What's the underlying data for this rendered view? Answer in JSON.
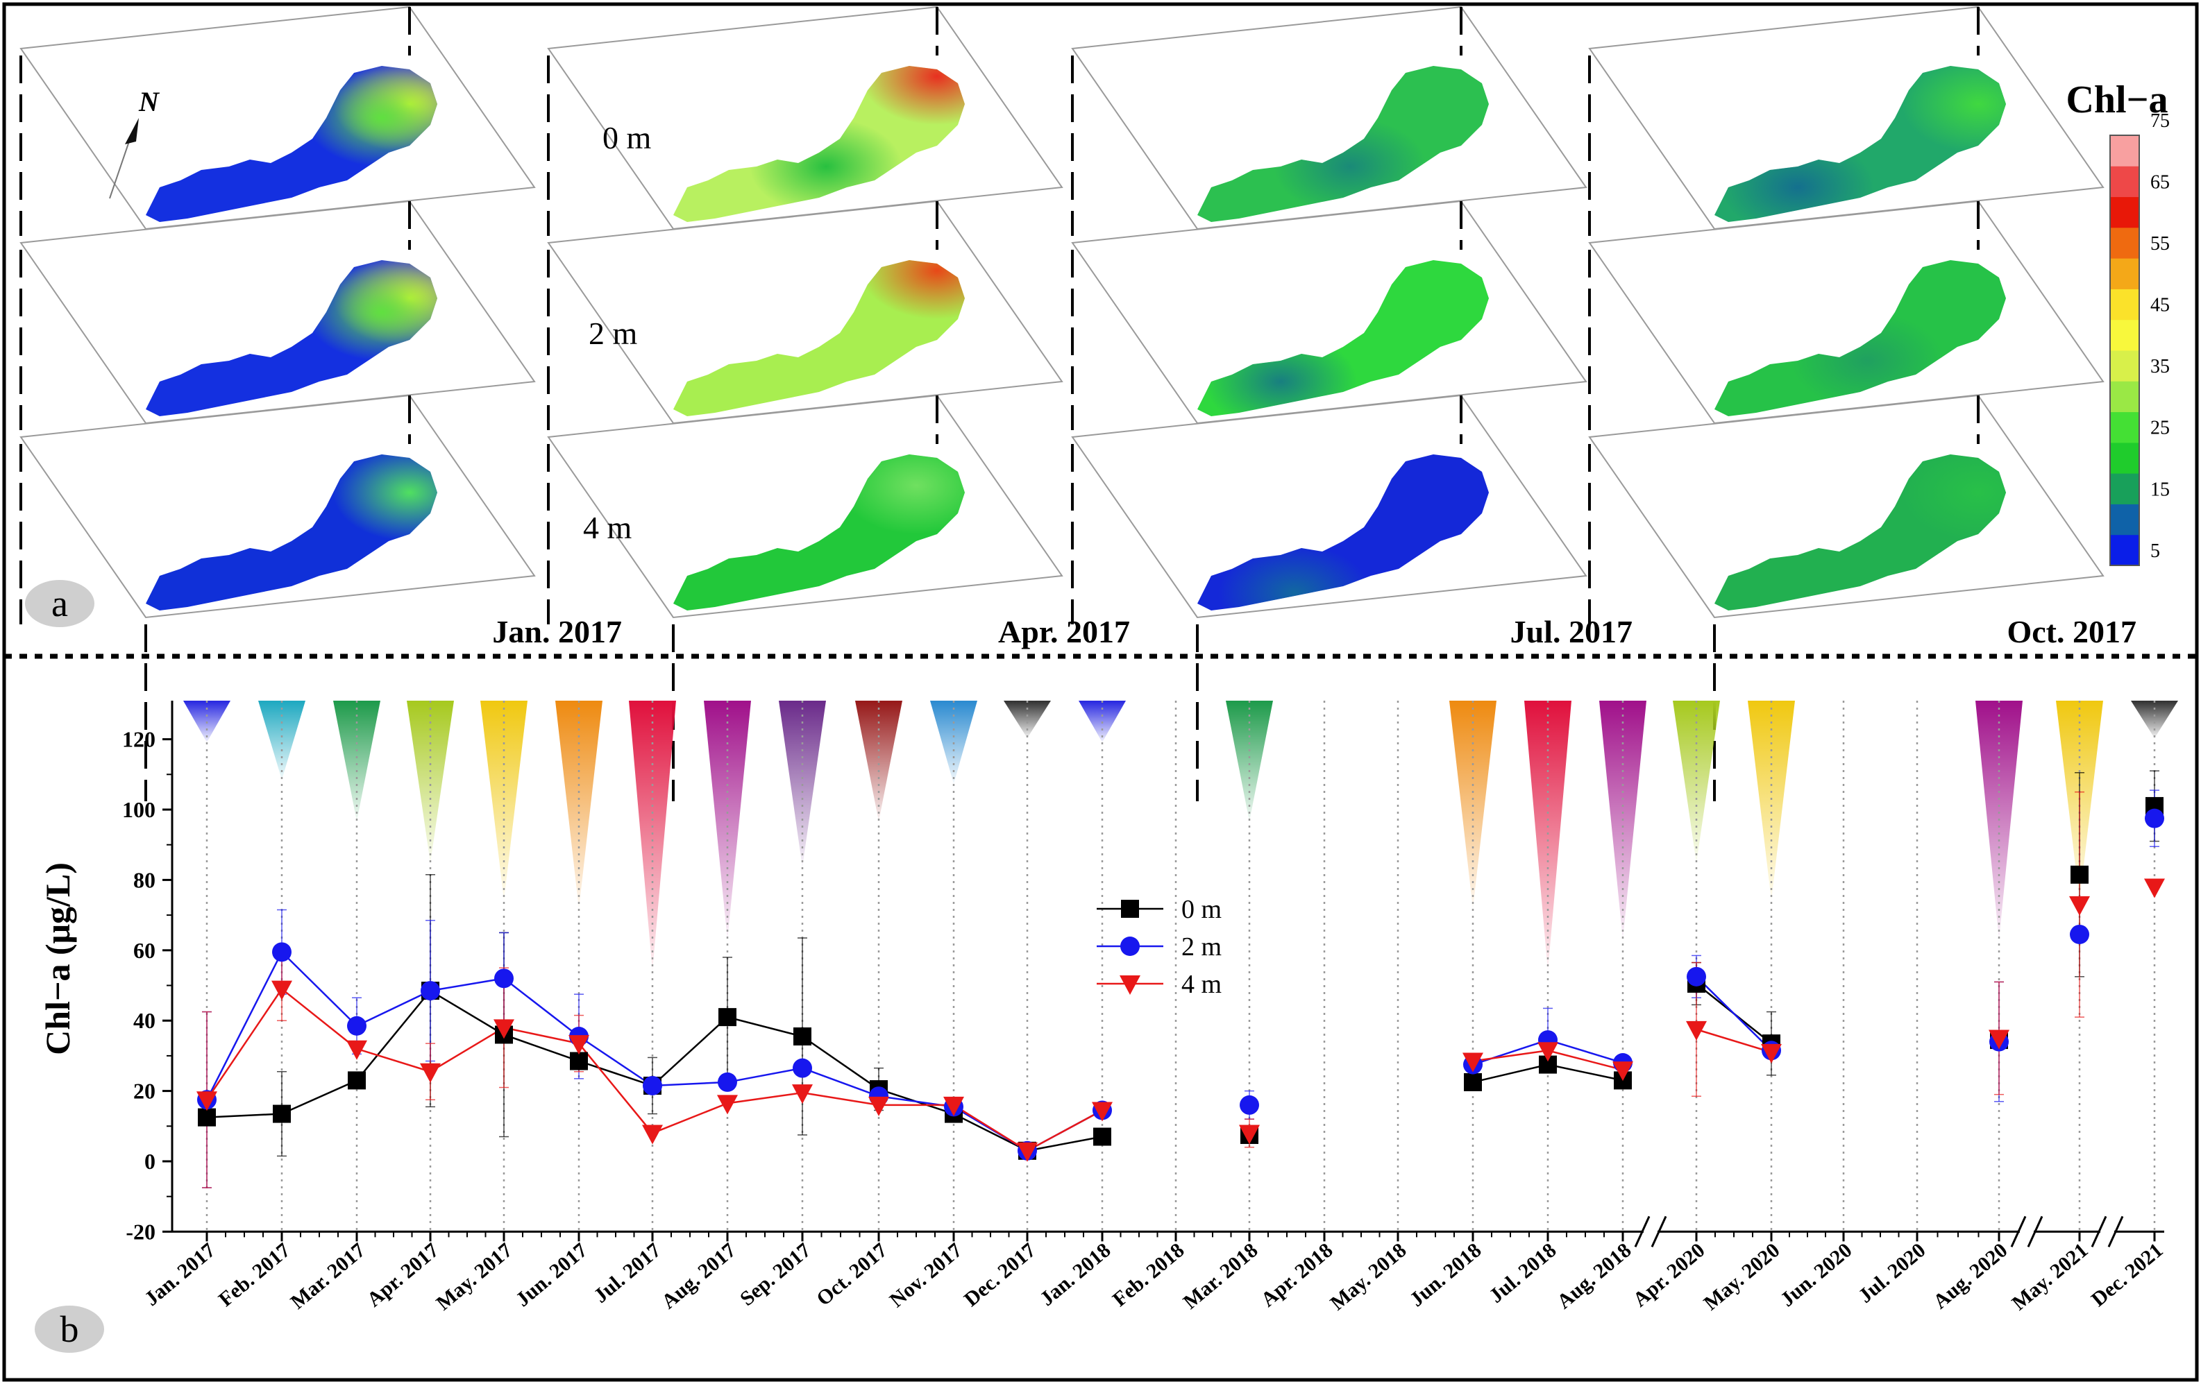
{
  "panel_a": {
    "badge": "a",
    "month_labels": [
      "Jan. 2017",
      "Apr. 2017",
      "Jul. 2017",
      "Oct. 2017"
    ],
    "depth_labels": [
      "0 m",
      "2 m",
      "4 m"
    ],
    "north_label": "N",
    "colorbar": {
      "title": "Chl−a",
      "ticks": [
        "5",
        "15",
        "25",
        "35",
        "45",
        "55",
        "65",
        "75"
      ],
      "colors": [
        "#0a1ee8",
        "#0f62a8",
        "#18a05a",
        "#1fcc2c",
        "#44e034",
        "#9ae845",
        "#d8f04a",
        "#f8f83c",
        "#fbe22a",
        "#f4a818",
        "#ef6a10",
        "#e81808",
        "#ee4848",
        "#f8a0a0"
      ]
    },
    "maps": [
      {
        "month": "Jan. 2017",
        "layers": [
          {
            "depth": "0 m",
            "base": "#1430e0",
            "hotspots": [
              {
                "color": "#ffff30",
                "label": "NE"
              },
              {
                "color": "#60e040",
                "label": "NE-inner"
              }
            ]
          },
          {
            "depth": "2 m",
            "base": "#1430e0",
            "hotspots": [
              {
                "color": "#ffff30",
                "label": "NE"
              },
              {
                "color": "#60e040",
                "label": "NE-inner"
              }
            ]
          },
          {
            "depth": "4 m",
            "base": "#1030d8",
            "hotspots": [
              {
                "color": "#50e060",
                "label": "NE"
              }
            ]
          }
        ]
      },
      {
        "month": "Apr. 2017",
        "layers": [
          {
            "depth": "0 m",
            "base": "#b8f060",
            "hotspots": [
              {
                "color": "#e83020",
                "label": "N-tip"
              },
              {
                "color": "#28c040",
                "label": "center"
              }
            ]
          },
          {
            "depth": "2 m",
            "base": "#a8ee50",
            "hotspots": [
              {
                "color": "#e84818",
                "label": "N-tip"
              }
            ]
          },
          {
            "depth": "4 m",
            "base": "#22c83a",
            "hotspots": [
              {
                "color": "#70e060",
                "label": "N"
              }
            ]
          }
        ]
      },
      {
        "month": "Jul. 2017",
        "layers": [
          {
            "depth": "0 m",
            "base": "#2cc050",
            "hotspots": [
              {
                "color": "#1a8a78",
                "label": "center"
              }
            ]
          },
          {
            "depth": "2 m",
            "base": "#2ed83e",
            "hotspots": [
              {
                "color": "#187f80",
                "label": "W"
              }
            ]
          },
          {
            "depth": "4 m",
            "base": "#1428d8",
            "hotspots": [
              {
                "color": "#1268a0",
                "label": "SW"
              }
            ]
          }
        ]
      },
      {
        "month": "Oct. 2017",
        "layers": [
          {
            "depth": "0 m",
            "base": "#21a86a",
            "hotspots": [
              {
                "color": "#14708e",
                "label": "W"
              },
              {
                "color": "#40d840",
                "label": "NE"
              }
            ]
          },
          {
            "depth": "2 m",
            "base": "#26c248",
            "hotspots": [
              {
                "color": "#20a060",
                "label": "center"
              }
            ]
          },
          {
            "depth": "4 m",
            "base": "#22b050",
            "hotspots": [
              {
                "color": "#28c048",
                "label": "NE"
              }
            ]
          }
        ]
      }
    ]
  },
  "panel_b": {
    "badge": "b",
    "chart_data": {
      "type": "line",
      "ylabel": "Chl−a (μg/L)",
      "xlabel": "",
      "ylim": [
        -20,
        130
      ],
      "yticks": [
        -20,
        0,
        20,
        40,
        60,
        80,
        100,
        120
      ],
      "categories": [
        "Jan. 2017",
        "Feb. 2017",
        "Mar. 2017",
        "Apr. 2017",
        "May. 2017",
        "Jun. 2017",
        "Jul. 2017",
        "Aug. 2017",
        "Sep. 2017",
        "Oct. 2017",
        "Nov. 2017",
        "Dec. 2017",
        "Jan. 2018",
        "Feb. 2018",
        "Mar. 2018",
        "Apr. 2018",
        "May. 2018",
        "Jun. 2018",
        "Jul. 2018",
        "Aug. 2018",
        "Apr. 2020",
        "May. 2020",
        "Jun. 2020",
        "Jul. 2020",
        "Aug. 2020",
        "May. 2021",
        "Dec. 2021"
      ],
      "axis_breaks_after": [
        "Aug. 2018",
        "Aug. 2020",
        "May. 2021"
      ],
      "line_segments": [
        [
          0,
          12
        ],
        [
          17,
          19
        ],
        [
          20,
          21
        ]
      ],
      "legend": {
        "placement": "center",
        "entries": [
          "0 m",
          "2 m",
          "4 m"
        ]
      },
      "series": [
        {
          "name": "0 m",
          "color": "#000000",
          "marker": "square",
          "values": [
            12.5,
            13.5,
            23,
            48.5,
            36,
            28.5,
            21.5,
            41,
            35.5,
            20.5,
            13.5,
            3,
            7,
            null,
            7.5,
            null,
            null,
            22.5,
            27.5,
            23,
            50.5,
            33.5,
            null,
            null,
            34.5,
            81.5,
            101
          ],
          "err": [
            null,
            12,
            null,
            33,
            29,
            null,
            8,
            17,
            28,
            6,
            null,
            null,
            null,
            null,
            null,
            null,
            null,
            null,
            null,
            null,
            6,
            9,
            null,
            null,
            null,
            29,
            10
          ]
        },
        {
          "name": "2 m",
          "color": "#1717ee",
          "marker": "circle",
          "values": [
            17.5,
            59.5,
            38.5,
            48.5,
            52,
            35.5,
            21.5,
            22.5,
            26.5,
            18.5,
            15.5,
            3,
            14.5,
            null,
            16,
            null,
            null,
            27.5,
            34.5,
            28,
            52.5,
            31.5,
            null,
            null,
            34,
            64.5,
            97.5
          ],
          "err": [
            25,
            12,
            8,
            20,
            13,
            12,
            null,
            null,
            null,
            null,
            null,
            null,
            null,
            null,
            4,
            null,
            null,
            null,
            9,
            null,
            6,
            null,
            null,
            null,
            17,
            null,
            8
          ]
        },
        {
          "name": "4 m",
          "color": "#e81818",
          "marker": "triangle-down",
          "values": [
            17.5,
            49,
            32,
            25.5,
            38,
            33.5,
            8,
            16.5,
            19.5,
            16,
            16,
            3,
            14.5,
            null,
            8,
            null,
            null,
            28.5,
            31.5,
            26,
            37.5,
            31,
            null,
            null,
            35,
            73,
            78
          ],
          "err": [
            25,
            9,
            null,
            8,
            17,
            8,
            null,
            null,
            null,
            null,
            null,
            null,
            null,
            null,
            4,
            null,
            null,
            null,
            null,
            null,
            19,
            null,
            null,
            null,
            16,
            32,
            null
          ]
        }
      ],
      "month_cones": [
        {
          "index": 0,
          "color": "#2626e0",
          "height": 0.2
        },
        {
          "index": 1,
          "color": "#1da8c0",
          "height": 0.38
        },
        {
          "index": 2,
          "color": "#1d9a4a",
          "height": 0.58
        },
        {
          "index": 3,
          "color": "#a6c91e",
          "height": 0.78
        },
        {
          "index": 4,
          "color": "#f0c810",
          "height": 0.96
        },
        {
          "index": 5,
          "color": "#ee8a10",
          "height": 1.0
        },
        {
          "index": 6,
          "color": "#e0103c",
          "height": 1.3
        },
        {
          "index": 7,
          "color": "#a0108a",
          "height": 1.15
        },
        {
          "index": 8,
          "color": "#6a2a8a",
          "height": 0.8
        },
        {
          "index": 9,
          "color": "#961818",
          "height": 0.58
        },
        {
          "index": 10,
          "color": "#2a8ad0",
          "height": 0.4
        },
        {
          "index": 11,
          "color": "#303030",
          "height": 0.18
        },
        {
          "index": 12,
          "color": "#2626e0",
          "height": 0.2
        },
        {
          "index": 14,
          "color": "#1d9a4a",
          "height": 0.58
        },
        {
          "index": 17,
          "color": "#ee8a10",
          "height": 1.0
        },
        {
          "index": 18,
          "color": "#e0103c",
          "height": 1.3
        },
        {
          "index": 19,
          "color": "#a0108a",
          "height": 1.15
        },
        {
          "index": 20,
          "color": "#a6c91e",
          "height": 0.78
        },
        {
          "index": 21,
          "color": "#f0c810",
          "height": 0.96
        },
        {
          "index": 24,
          "color": "#a0108a",
          "height": 1.15
        },
        {
          "index": 25,
          "color": "#f0c810",
          "height": 0.96
        },
        {
          "index": 26,
          "color": "#303030",
          "height": 0.18
        }
      ]
    }
  }
}
